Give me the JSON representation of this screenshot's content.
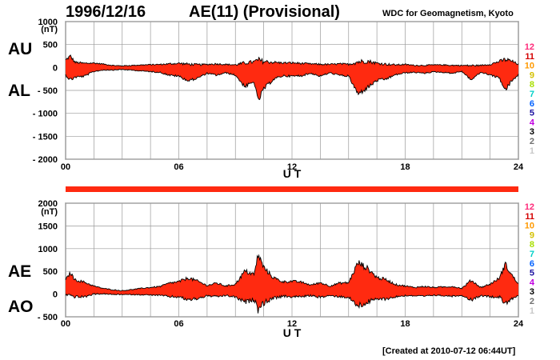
{
  "header": {
    "date": "1996/12/16",
    "title": "AE(11) (Provisional)",
    "source": "WDC for Geomagnetism, Kyoto",
    "created": "[Created at 2010-07-12 06:44UT]"
  },
  "labels": {
    "au": "AU",
    "al": "AL",
    "ae": "AE",
    "ao": "AO"
  },
  "colors": {
    "fill": "#ff2a10",
    "line": "#000000",
    "grid": "#9a9a9a",
    "strip": "#ff2a10"
  },
  "chart_data": [
    {
      "type": "area",
      "panel": "AU/AL",
      "xlabel": "U T",
      "xticks": [
        "00",
        "06",
        "12",
        "18",
        "24"
      ],
      "xlim": [
        0,
        24
      ],
      "ylim": [
        -2000,
        1000
      ],
      "yticks": [
        "1000",
        "500",
        "0",
        "- 500",
        "- 1000",
        "- 1500",
        "- 2000"
      ],
      "yunit": "(nT)",
      "grid": true,
      "series": [
        {
          "name": "AU",
          "x": [
            0,
            0.25,
            0.5,
            1,
            1.5,
            2,
            2.5,
            3,
            4,
            5,
            5.5,
            6,
            6.5,
            7,
            7.5,
            8,
            8.5,
            9,
            9.5,
            10,
            10.2,
            10.5,
            11,
            11.5,
            12,
            12.5,
            13,
            13.5,
            14,
            14.5,
            15,
            15.5,
            16,
            16.5,
            17,
            17.5,
            18,
            18.5,
            19,
            19.5,
            20,
            20.5,
            21,
            21.5,
            22,
            22.5,
            23,
            23.3,
            23.6,
            24
          ],
          "y": [
            150,
            230,
            100,
            80,
            90,
            70,
            40,
            30,
            50,
            60,
            70,
            80,
            60,
            50,
            60,
            70,
            60,
            50,
            80,
            110,
            130,
            110,
            100,
            90,
            90,
            80,
            70,
            60,
            60,
            70,
            60,
            100,
            120,
            80,
            60,
            50,
            60,
            40,
            40,
            50,
            50,
            40,
            40,
            30,
            40,
            60,
            120,
            150,
            130,
            60
          ]
        },
        {
          "name": "AL",
          "x": [
            0,
            0.25,
            0.5,
            1,
            1.5,
            2,
            2.5,
            3,
            4,
            5,
            5.5,
            6,
            6.5,
            7,
            7.5,
            8,
            8.5,
            9,
            9.5,
            10,
            10.2,
            10.5,
            11,
            11.5,
            12,
            12.5,
            13,
            13.5,
            14,
            14.5,
            15,
            15.5,
            16,
            16.5,
            17,
            17.5,
            18,
            18.5,
            19,
            19.5,
            20,
            20.5,
            21,
            21.5,
            22,
            22.5,
            23,
            23.3,
            23.6,
            24
          ],
          "y": [
            -150,
            -250,
            -200,
            -180,
            -80,
            -50,
            -50,
            -40,
            -70,
            -100,
            -160,
            -180,
            -280,
            -220,
            -120,
            -160,
            -110,
            -160,
            -400,
            -300,
            -700,
            -450,
            -250,
            -170,
            -180,
            -170,
            -120,
            -180,
            -110,
            -160,
            -180,
            -560,
            -420,
            -270,
            -240,
            -150,
            -110,
            -100,
            -120,
            -90,
            -100,
            -120,
            -80,
            -260,
            -100,
            -150,
            -220,
            -480,
            -300,
            -150
          ]
        }
      ]
    },
    {
      "type": "area",
      "panel": "AE/AO",
      "xlabel": "U T",
      "xticks": [
        "00",
        "06",
        "12",
        "18",
        "24"
      ],
      "xlim": [
        0,
        24
      ],
      "ylim": [
        -500,
        2000
      ],
      "yticks": [
        "2000",
        "1500",
        "1000",
        "500",
        "0",
        "- 500"
      ],
      "yunit": "(nT)",
      "grid": true,
      "series": [
        {
          "name": "AE",
          "x": [
            0,
            0.25,
            0.5,
            1,
            1.5,
            2,
            2.5,
            3,
            4,
            5,
            5.5,
            6,
            6.5,
            7,
            7.5,
            8,
            8.5,
            9,
            9.5,
            10,
            10.2,
            10.5,
            11,
            11.5,
            12,
            12.5,
            13,
            13.5,
            14,
            14.5,
            15,
            15.5,
            16,
            16.5,
            17,
            17.5,
            18,
            18.5,
            19,
            19.5,
            20,
            20.5,
            21,
            21.5,
            22,
            22.5,
            23,
            23.3,
            23.6,
            24
          ],
          "y": [
            300,
            450,
            300,
            250,
            170,
            120,
            90,
            70,
            120,
            160,
            230,
            260,
            340,
            270,
            180,
            230,
            170,
            210,
            480,
            410,
            830,
            560,
            350,
            260,
            270,
            250,
            190,
            240,
            170,
            230,
            240,
            660,
            540,
            350,
            300,
            200,
            170,
            140,
            160,
            140,
            150,
            160,
            120,
            290,
            140,
            210,
            340,
            630,
            430,
            210
          ]
        },
        {
          "name": "AO",
          "x": [
            0,
            0.25,
            0.5,
            1,
            1.5,
            2,
            2.5,
            3,
            4,
            5,
            5.5,
            6,
            6.5,
            7,
            7.5,
            8,
            8.5,
            9,
            9.5,
            10,
            10.2,
            10.5,
            11,
            11.5,
            12,
            12.5,
            13,
            13.5,
            14,
            14.5,
            15,
            15.5,
            16,
            16.5,
            17,
            17.5,
            18,
            18.5,
            19,
            19.5,
            20,
            20.5,
            21,
            21.5,
            22,
            22.5,
            23,
            23.3,
            23.6,
            24
          ],
          "y": [
            0,
            -10,
            -50,
            -50,
            5,
            10,
            -5,
            -5,
            -10,
            -20,
            -45,
            -50,
            -110,
            -85,
            -30,
            -45,
            -25,
            -55,
            -160,
            -95,
            -285,
            -170,
            -75,
            -40,
            -45,
            -45,
            -25,
            -60,
            -25,
            -45,
            -60,
            -230,
            -150,
            -95,
            -90,
            -50,
            -25,
            -30,
            -40,
            -20,
            -25,
            -40,
            -20,
            -115,
            -30,
            -45,
            -50,
            -165,
            -85,
            -45
          ]
        }
      ]
    }
  ],
  "legend": {
    "items": [
      {
        "label": "12",
        "color": "#ff2a7a"
      },
      {
        "label": "11",
        "color": "#d40000"
      },
      {
        "label": "10",
        "color": "#ff9900"
      },
      {
        "label": "9",
        "color": "#d4c000"
      },
      {
        "label": "8",
        "color": "#a8e000"
      },
      {
        "label": "7",
        "color": "#00d0c8"
      },
      {
        "label": "6",
        "color": "#0060ff"
      },
      {
        "label": "5",
        "color": "#1a10a0"
      },
      {
        "label": "4",
        "color": "#c000e0"
      },
      {
        "label": "3",
        "color": "#000000"
      },
      {
        "label": "2",
        "color": "#707070"
      },
      {
        "label": "1",
        "color": "#c8c8c8"
      }
    ]
  }
}
